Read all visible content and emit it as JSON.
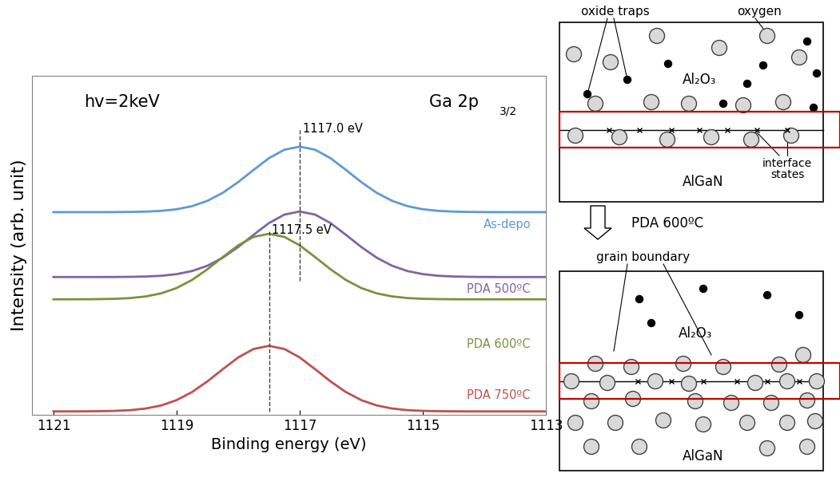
{
  "chart_data": {
    "type": "line",
    "x_label": "Binding energy (eV)",
    "y_label": "Intensity (arb. unit)",
    "x": [
      1121,
      1120.75,
      1120.5,
      1120.25,
      1120,
      1119.75,
      1119.5,
      1119.25,
      1119,
      1118.75,
      1118.5,
      1118.25,
      1118,
      1117.75,
      1117.5,
      1117.25,
      1117,
      1116.75,
      1116.5,
      1116.25,
      1116,
      1115.75,
      1115.5,
      1115.25,
      1115,
      1114.75,
      1114.5,
      1114.25,
      1114,
      1113.75,
      1113.5,
      1113.25,
      1113
    ],
    "series": [
      {
        "name": "As-depo",
        "color": "#5B9BD5",
        "values": [
          3.04,
          3.04,
          3.04,
          3.04,
          3.041,
          3.043,
          3.048,
          3.059,
          3.084,
          3.131,
          3.212,
          3.335,
          3.498,
          3.684,
          3.863,
          3.992,
          4.04,
          3.992,
          3.863,
          3.684,
          3.498,
          3.335,
          3.212,
          3.131,
          3.084,
          3.059,
          3.048,
          3.043,
          3.041,
          3.04,
          3.04,
          3.04,
          3.04
        ]
      },
      {
        "name": "PDA 500ºC",
        "color": "#8064A2",
        "values": [
          2.05,
          2.05,
          2.05,
          2.05,
          2.051,
          2.053,
          2.058,
          2.069,
          2.094,
          2.141,
          2.222,
          2.345,
          2.508,
          2.694,
          2.873,
          3.002,
          3.05,
          3.002,
          2.873,
          2.694,
          2.508,
          2.345,
          2.222,
          2.141,
          2.094,
          2.069,
          2.058,
          2.053,
          2.051,
          2.05,
          2.05,
          2.05,
          2.05
        ]
      },
      {
        "name": "PDA 600ºC",
        "color": "#77933C",
        "values": [
          1.71,
          1.71,
          1.711,
          1.713,
          1.718,
          1.729,
          1.754,
          1.801,
          1.882,
          2.005,
          2.168,
          2.354,
          2.533,
          2.662,
          2.71,
          2.662,
          2.533,
          2.354,
          2.168,
          2.005,
          1.882,
          1.801,
          1.754,
          1.729,
          1.718,
          1.713,
          1.711,
          1.71,
          1.71,
          1.71,
          1.71,
          1.71,
          1.71
        ]
      },
      {
        "name": "PDA 750ºC",
        "color": "#C0504D",
        "values": [
          0,
          0,
          0.001,
          0.003,
          0.008,
          0.019,
          0.044,
          0.091,
          0.172,
          0.295,
          0.458,
          0.644,
          0.823,
          0.952,
          1,
          0.952,
          0.823,
          0.644,
          0.458,
          0.295,
          0.172,
          0.091,
          0.044,
          0.019,
          0.008,
          0.003,
          0.001,
          0,
          0,
          0,
          0,
          0,
          0
        ]
      }
    ],
    "xlim": [
      1121.35,
      1113
    ],
    "xticks": [
      1121,
      1119,
      1117,
      1115,
      1113
    ],
    "ylim": [
      -0.05,
      5.12
    ],
    "yticks": [],
    "tick_labels": "x",
    "annotations": [
      {
        "text": "hv=2keV"
      },
      {
        "text": "Ga 2p",
        "subscript": "3/2"
      }
    ],
    "reference_lines": [
      {
        "x": 1117.0,
        "y": [
          1.99,
          4.31
        ],
        "label": "1117.0 eV",
        "line_style": "dashed"
      },
      {
        "x": 1117.5,
        "y": [
          0,
          2.77
        ],
        "label": "1117.5 eV",
        "line_style": "dashed"
      }
    ]
  },
  "diagram": {
    "labels": {
      "oxide_traps": "oxide traps",
      "oxygen": "oxygen",
      "interface_states": "interface\nstates",
      "grain_boundary": "grain boundary",
      "process": "PDA 600ºC"
    },
    "before": {
      "top_layer": "Al₂O₃",
      "bottom_layer": "AlGaN"
    },
    "after": {
      "top_layer": "Al₂O₃",
      "bottom_layer": "AlGaN"
    }
  }
}
